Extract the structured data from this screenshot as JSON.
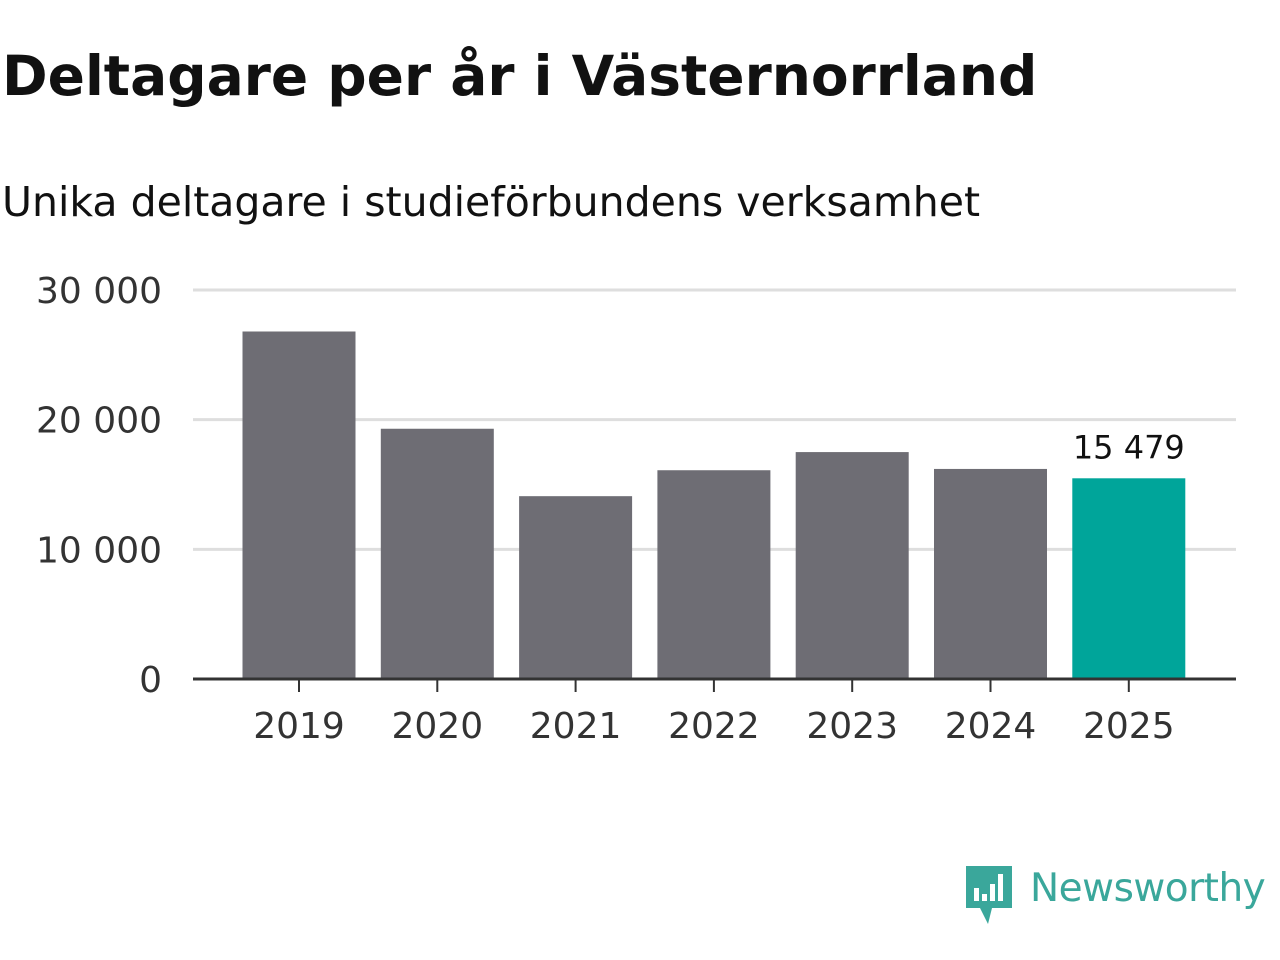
{
  "chart_data": {
    "type": "bar",
    "title": "Deltagare per år i Västernorrland",
    "subtitle": "Unika deltagare i studieförbundens verksamhet",
    "categories": [
      "2019",
      "2020",
      "2021",
      "2022",
      "2023",
      "2024",
      "2025"
    ],
    "values": [
      26800,
      19300,
      14100,
      16100,
      17500,
      16200,
      15479
    ],
    "highlight_index": 6,
    "highlight_label": "15 479",
    "ylim": [
      0,
      30000
    ],
    "yticks": [
      0,
      10000,
      20000,
      30000
    ],
    "ytick_labels": [
      "0",
      "10 000",
      "20 000",
      "30 000"
    ],
    "xlabel": "",
    "ylabel": "",
    "grid": true,
    "colors": {
      "bar": "#6e6d74",
      "highlight": "#00a59a",
      "grid": "#dedede",
      "axis": "#333333",
      "text": "#333333"
    }
  },
  "branding": {
    "name": "Newsworthy",
    "color": "#3aa79b",
    "icon": "newsworthy-bar-chart-icon"
  }
}
